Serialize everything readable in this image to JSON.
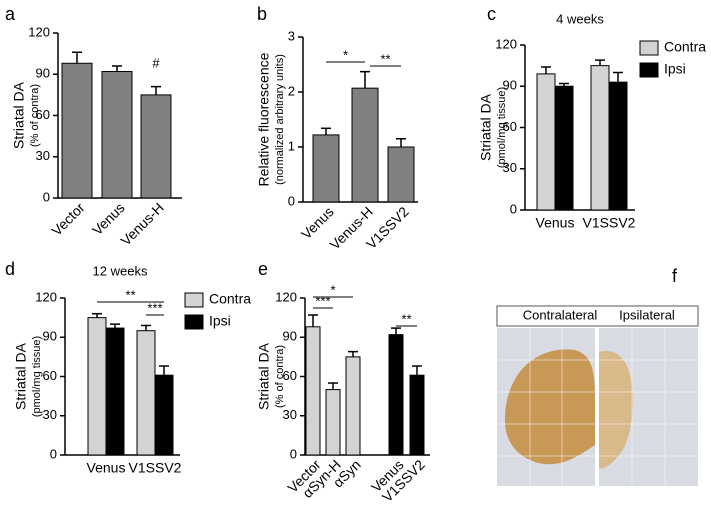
{
  "chart_data": [
    {
      "type": "bar",
      "panel": "a",
      "ylabel": [
        "Striatal DA",
        "(% of contra)"
      ],
      "categories": [
        "Vector",
        "Venus",
        "Venus-H"
      ],
      "values": [
        98,
        92,
        75
      ],
      "errors": [
        8,
        4,
        6
      ],
      "color": "#808080",
      "ylim": [
        0,
        120
      ],
      "yticks": [
        0,
        30,
        60,
        90,
        120
      ],
      "annotations": [
        "#"
      ]
    },
    {
      "type": "bar",
      "panel": "b",
      "ylabel": [
        "Relative fluorescence",
        "(normalized arbitrary units)"
      ],
      "categories": [
        "Venus",
        "Venus-H",
        "V1SSV2"
      ],
      "values": [
        1.22,
        2.07,
        1.0
      ],
      "errors": [
        0.12,
        0.3,
        0.15
      ],
      "color": "#808080",
      "ylim": [
        0,
        3
      ],
      "yticks": [
        0,
        1,
        2,
        3
      ],
      "annotations": [
        "*",
        "**"
      ]
    },
    {
      "type": "grouped-bar",
      "panel": "c",
      "title": "4 weeks",
      "ylabel": [
        "Striatal DA",
        "(pmol/mg tissue)"
      ],
      "categories": [
        "Venus",
        "V1SSV2"
      ],
      "series": [
        {
          "name": "Contra",
          "color": "#d3d3d3",
          "values": [
            99,
            105
          ],
          "errors": [
            5,
            4
          ]
        },
        {
          "name": "Ipsi",
          "color": "#000000",
          "values": [
            90,
            93
          ],
          "errors": [
            2,
            7
          ]
        }
      ],
      "ylim": [
        0,
        120
      ],
      "yticks": [
        0,
        30,
        60,
        90,
        120
      ],
      "annotations": []
    },
    {
      "type": "grouped-bar",
      "panel": "d",
      "title": "12 weeks",
      "ylabel": [
        "Striatal DA",
        "(pmol/mg tissue)"
      ],
      "categories": [
        "Venus",
        "V1SSV2"
      ],
      "series": [
        {
          "name": "Contra",
          "color": "#d3d3d3",
          "values": [
            105,
            95
          ],
          "errors": [
            3,
            4
          ]
        },
        {
          "name": "Ipsi",
          "color": "#000000",
          "values": [
            97,
            61
          ],
          "errors": [
            3,
            7
          ]
        }
      ],
      "ylim": [
        0,
        120
      ],
      "yticks": [
        0,
        30,
        60,
        90,
        120
      ],
      "annotations": [
        "**",
        "***"
      ]
    },
    {
      "type": "bar",
      "panel": "e",
      "ylabel": [
        "Striatal DA",
        "(% of contra)"
      ],
      "categories": [
        "Vector",
        "αSyn-H",
        "αSyn",
        "Venus",
        "V1SSV2"
      ],
      "values": [
        98,
        50,
        75,
        92,
        61
      ],
      "errors": [
        9,
        5,
        4,
        5,
        7
      ],
      "colors": [
        "#d3d3d3",
        "#d3d3d3",
        "#d3d3d3",
        "#000000",
        "#000000"
      ],
      "ylim": [
        0,
        120
      ],
      "yticks": [
        0,
        30,
        60,
        90,
        120
      ],
      "annotations": [
        "*",
        "***",
        "**"
      ]
    }
  ],
  "image_panel": {
    "panel": "f",
    "labels": [
      "Contralateral",
      "Ipsilateral"
    ]
  }
}
